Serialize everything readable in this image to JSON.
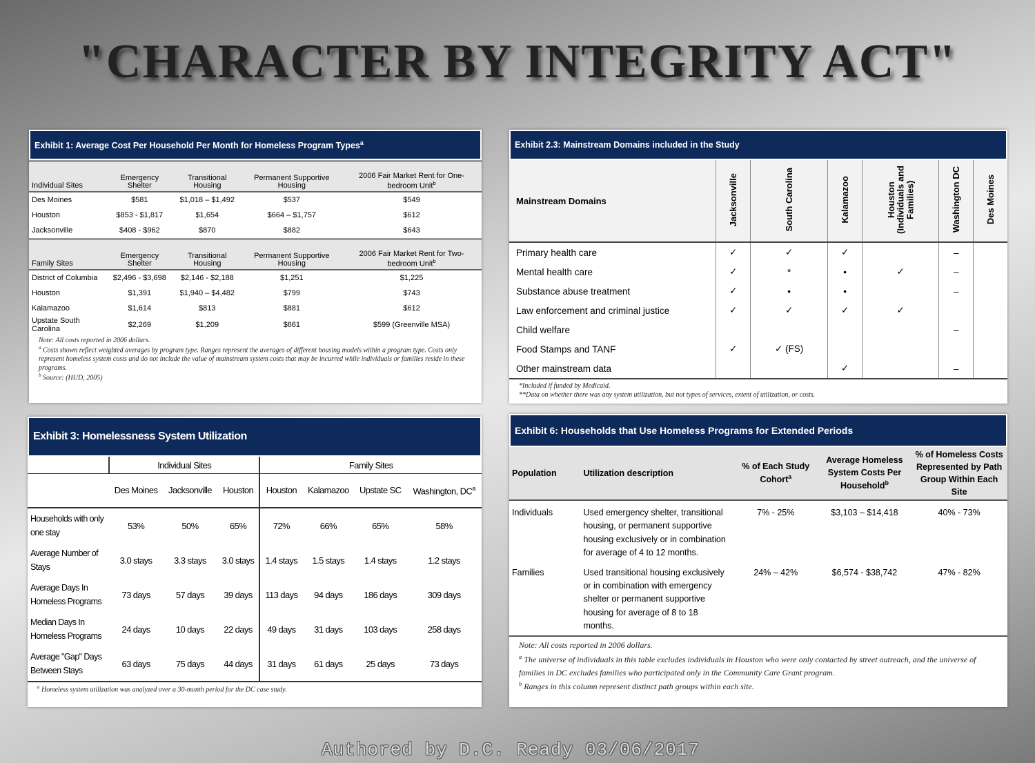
{
  "title": "\"CHARACTER BY INTEGRITY ACT\"",
  "footer": "Authored by D.C. Ready 03/06/2017",
  "exhibit1": {
    "title": {
      "text": "Exhibit 1: Average Cost Per Household Per Month for Homeless Program Types",
      "sup": "a"
    },
    "sections": [
      {
        "header": [
          "Individual Sites",
          "Emergency Shelter",
          "Transitional Housing",
          "Permanent Supportive Housing",
          {
            "text": "2006 Fair Market Rent for One-bedroom Unit",
            "sup": "b"
          }
        ],
        "rows": [
          [
            "Des Moines",
            "$581",
            "$1,018 – $1,492",
            "$537",
            "$549"
          ],
          [
            "Houston",
            "$853 - $1,817",
            "$1,654",
            "$664 – $1,757",
            "$612"
          ],
          [
            "Jacksonville",
            "$408 - $962",
            "$870",
            "$882",
            "$643"
          ]
        ]
      },
      {
        "header": [
          "Family Sites",
          "Emergency Shelter",
          "Transitional Housing",
          "Permanent Supportive Housing",
          {
            "text": "2006 Fair Market Rent for Two-bedroom Unit",
            "sup": "b"
          }
        ],
        "rows": [
          [
            "District of Columbia",
            "$2,496 - $3,698",
            "$2,146 - $2,188",
            "$1,251",
            "$1,225"
          ],
          [
            "Houston",
            "$1,391",
            "$1,940 – $4,482",
            "$799",
            "$743"
          ],
          [
            "Kalamazoo",
            "$1,614",
            "$813",
            "$881",
            "$612"
          ],
          [
            "Upstate South Carolina",
            "$2,269",
            "$1,209",
            "$661",
            "$599 (Greenville MSA)"
          ]
        ]
      }
    ],
    "notes": [
      {
        "text": "Note: All costs reported in 2006 dollars."
      },
      {
        "mark": "a",
        "text": "Costs shown reflect weighted averages by program type. Ranges represent the averages of different housing models within a program type. Costs only represent homeless system costs and do not include the value of mainstream system costs that may be incurred while individuals or families reside in these programs."
      },
      {
        "mark": "b",
        "text": "Source: (HUD, 2005)"
      }
    ]
  },
  "exhibit2": {
    "title": "Exhibit 2.3: Mainstream Domains included in the Study",
    "columns": [
      "Mainstream Domains",
      "Jacksonville",
      "South Carolina",
      "Kalamazoo",
      "Houston (Individuals and Families)",
      "Washington DC",
      "Des Moines"
    ],
    "rows": [
      [
        "Primary health care",
        "✓",
        "✓",
        "✓",
        null,
        "–",
        null
      ],
      [
        "Mental health care",
        "✓",
        "*",
        "•",
        "✓",
        "–",
        null
      ],
      [
        "Substance abuse treatment",
        "✓",
        "•",
        "•",
        null,
        "–",
        null
      ],
      [
        "Law enforcement and criminal justice",
        "✓",
        "✓",
        "✓",
        "✓",
        null,
        null
      ],
      [
        "Child welfare",
        null,
        null,
        null,
        null,
        "–",
        null
      ],
      [
        "Food Stamps and TANF",
        "✓",
        "✓ (FS)",
        null,
        null,
        null,
        null
      ],
      [
        "Other mainstream data",
        null,
        null,
        "✓",
        null,
        "–",
        null
      ]
    ],
    "notes": [
      "*Included if funded by Medicaid.",
      "**Data on whether there was any system utilization, but not types of services, extent of utilization, or costs."
    ]
  },
  "exhibit3": {
    "title": "Exhibit 3: Homelessness System Utilization",
    "groups": [
      {
        "label": "Individual Sites",
        "span": 3
      },
      {
        "label": "Family Sites",
        "span": 4
      }
    ],
    "columns": [
      "Des Moines",
      "Jacksonville",
      "Houston",
      "Houston",
      "Kalamazoo",
      "Upstate SC",
      {
        "text": "Washington, DC",
        "sup": "a"
      }
    ],
    "rows": [
      [
        "Households with only one stay",
        "53%",
        "50%",
        "65%",
        "72%",
        "66%",
        "65%",
        "58%"
      ],
      [
        "Average Number of Stays",
        "3.0 stays",
        "3.3 stays",
        "3.0 stays",
        "1.4 stays",
        "1.5 stays",
        "1.4 stays",
        "1.2 stays"
      ],
      [
        "Average Days In Homeless Programs",
        "73 days",
        "57 days",
        "39 days",
        "113 days",
        "94 days",
        "186 days",
        "309 days"
      ],
      [
        "Median Days In Homeless Programs",
        "24 days",
        "10 days",
        "22 days",
        "49 days",
        "31 days",
        "103 days",
        "258 days"
      ],
      [
        "Average \"Gap\" Days Between Stays",
        "63 days",
        "75 days",
        "44 days",
        "31 days",
        "61 days",
        "25 days",
        "73 days"
      ]
    ],
    "notes": [
      {
        "mark": "a",
        "text": "Homeless system utilization was analyzed over a 30-month period for the DC case study."
      }
    ]
  },
  "exhibit6": {
    "title": "Exhibit 6: Households that Use Homeless Programs for Extended Periods",
    "columns": [
      "Population",
      "Utilization description",
      {
        "text": "% of Each Study Cohort",
        "sup": "a"
      },
      {
        "text": "Average Homeless System Costs Per Household",
        "sup": "b"
      },
      "% of Homeless Costs Represented by Path Group Within Each Site"
    ],
    "rows": [
      [
        "Individuals",
        "Used emergency shelter, transitional housing, or permanent supportive housing exclusively or in combination for average of 4 to 12 months.",
        "7% - 25%",
        "$3,103 – $14,418",
        "40% - 73%"
      ],
      [
        "Families",
        "Used transitional housing exclusively or in combination with emergency shelter or permanent supportive housing for average of 8 to 18 months.",
        "24% – 42%",
        "$6,574 - $38,742",
        "47% - 82%"
      ]
    ],
    "notes": [
      {
        "text": "Note: All costs reported in 2006 dollars."
      },
      {
        "mark": "a",
        "text": "The universe of individuals in this table excludes individuals in Houston who were only contacted by street outreach, and the universe of families in DC excludes families who participated only in the Community Care Grant program."
      },
      {
        "mark": "b",
        "text": "Ranges in this column represent distinct path groups within each site."
      }
    ]
  }
}
